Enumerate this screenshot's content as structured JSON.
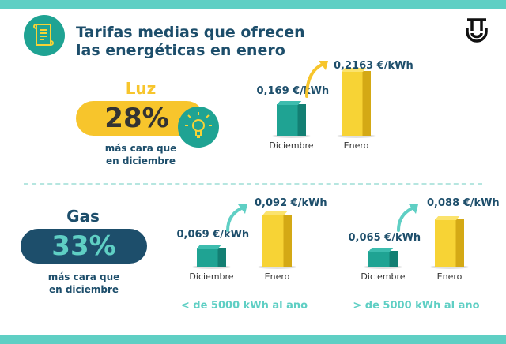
{
  "header": {
    "title_line1": "Tarifas medias que ofrecen",
    "title_line2": "las energéticas en enero",
    "icon": "document-scroll-icon",
    "logo": "brand-logo"
  },
  "luz": {
    "label": "Luz",
    "percent": "28%",
    "sub_line1": "más cara que",
    "sub_line2": "en diciembre",
    "icon": "lightbulb-icon"
  },
  "gas": {
    "label": "Gas",
    "percent": "33%",
    "sub_line1": "más cara que",
    "sub_line2": "en diciembre"
  },
  "colors": {
    "teal": "#1fa393",
    "light_teal": "#5fcfc4",
    "yellow": "#f7c52c",
    "navy": "#1d4e6b"
  },
  "chart_data": [
    {
      "type": "bar",
      "categories": [
        "Diciembre",
        "Enero"
      ],
      "values": [
        0.169,
        0.2163
      ],
      "labels": [
        "0,169 €/kWh",
        "0,2163 €/kWh"
      ],
      "colors": [
        "#1fa393",
        "#f7d335"
      ]
    },
    {
      "type": "bar",
      "categories": [
        "Diciembre",
        "Enero"
      ],
      "values": [
        0.069,
        0.092
      ],
      "labels": [
        "0,069 €/kWh",
        "0,092 €/kWh"
      ],
      "colors": [
        "#1fa393",
        "#f7d335"
      ],
      "caption": "< de 5000 kWh al año"
    },
    {
      "type": "bar",
      "categories": [
        "Diciembre",
        "Enero"
      ],
      "values": [
        0.065,
        0.088
      ],
      "labels": [
        "0,065 €/kWh",
        "0,088 €/kWh"
      ],
      "colors": [
        "#1fa393",
        "#f7d335"
      ],
      "caption": "> de 5000 kWh al año"
    }
  ]
}
